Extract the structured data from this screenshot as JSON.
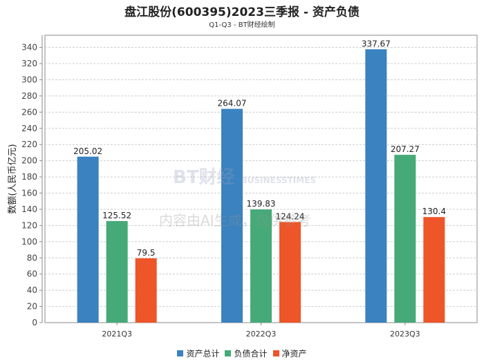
{
  "chart_data": {
    "type": "bar",
    "title": "盘江股份(600395)2023三季报 - 资产负债",
    "subtitle": "Q1-Q3 - BT财经绘制",
    "ylabel": "数额(人民币亿元)",
    "xlabel": "",
    "ylim": [
      0,
      355
    ],
    "yticks": [
      0,
      20,
      40,
      60,
      80,
      100,
      120,
      140,
      160,
      180,
      200,
      220,
      240,
      260,
      280,
      300,
      320,
      340
    ],
    "categories": [
      "2021Q3",
      "2022Q3",
      "2023Q3"
    ],
    "series": [
      {
        "name": "资产总计",
        "color": "#3a82c0",
        "values": [
          205.02,
          264.07,
          337.67
        ]
      },
      {
        "name": "负债合计",
        "color": "#46aa78",
        "values": [
          125.52,
          139.83,
          207.27
        ]
      },
      {
        "name": "净资产",
        "color": "#ee5528",
        "values": [
          79.5,
          124.24,
          130.4
        ]
      }
    ],
    "grid": true,
    "legend_position": "bottom"
  },
  "watermark": {
    "brand": "BT财经",
    "sub": "BUSINESSTIMES",
    "note": "内容由AI生成，仅供参考"
  }
}
